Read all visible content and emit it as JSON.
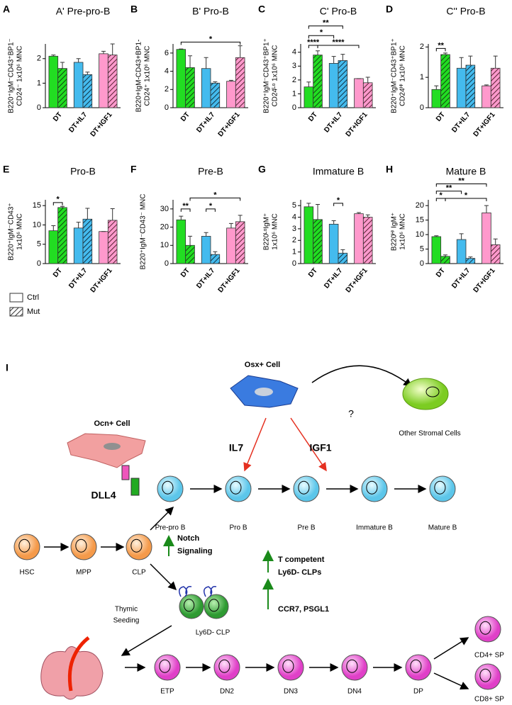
{
  "chart_data": [
    {
      "type": "bar",
      "panel": "A",
      "title": "A' Pre-pro-B",
      "ylabel": [
        "B220⁺IgM⁻CD43⁺BP1⁻",
        "CD24⁻ 1x10⁶ MNC"
      ],
      "categories": [
        "DT",
        "DT+IL7",
        "DT+IGF1"
      ],
      "colors": [
        "#22dd22",
        "#44bbee",
        "#ff99cc"
      ],
      "series": [
        {
          "values": [
            2.1,
            1.85,
            2.2
          ],
          "errors": [
            0.05,
            0.15,
            0.1
          ],
          "hatch": false
        },
        {
          "values": [
            1.6,
            1.35,
            2.15
          ],
          "errors": [
            0.25,
            0.1,
            0.45
          ],
          "hatch": true
        }
      ],
      "ylim": [
        0,
        2.6
      ],
      "yticks": [
        0,
        1,
        2
      ],
      "brackets": []
    },
    {
      "type": "bar",
      "panel": "B",
      "title": "B' Pro-B",
      "ylabel": [
        "B220+IgM-CD43+BP1-",
        "CD24⁺ 1x10⁶ MNC"
      ],
      "categories": [
        "DT",
        "DT+IL7",
        "DT+IGF1"
      ],
      "colors": [
        "#22dd22",
        "#44bbee",
        "#ff99cc"
      ],
      "series": [
        {
          "values": [
            6.4,
            4.3,
            2.9
          ],
          "errors": [
            0.05,
            1.2,
            0.1
          ],
          "hatch": false
        },
        {
          "values": [
            4.4,
            2.7,
            5.5
          ],
          "errors": [
            1.3,
            0.15,
            1.3
          ],
          "hatch": true
        }
      ],
      "ylim": [
        0,
        7
      ],
      "yticks": [
        0,
        2,
        4,
        6
      ],
      "brackets": [
        {
          "label": "*",
          "from": 0,
          "to": 5,
          "y": 7.2
        }
      ]
    },
    {
      "type": "bar",
      "panel": "C",
      "title": "C' Pro-B",
      "ylabel": [
        "B220⁺IgM⁻CD43⁺BP1⁺",
        "CD24ᴸᵒ 1x10⁶ MNC"
      ],
      "categories": [
        "DT",
        "DT+IL7",
        "DT+IGF1"
      ],
      "colors": [
        "#22dd22",
        "#44bbee",
        "#ff99cc"
      ],
      "series": [
        {
          "values": [
            1.5,
            3.2,
            2.1
          ],
          "errors": [
            0.35,
            0.5,
            0
          ],
          "hatch": false
        },
        {
          "values": [
            3.8,
            3.4,
            1.8
          ],
          "errors": [
            0.3,
            0.45,
            0.4
          ],
          "hatch": true
        }
      ],
      "ylim": [
        0,
        4.6
      ],
      "yticks": [
        0,
        1,
        2,
        3,
        4
      ],
      "brackets": [
        {
          "label": "****",
          "from": 0,
          "to": 1,
          "y": 4.5
        },
        {
          "label": "****",
          "from": 1,
          "to": 4,
          "y": 4.5
        },
        {
          "label": "*",
          "from": 0,
          "to": 2,
          "y": 5.2
        },
        {
          "label": "**",
          "from": 0,
          "to": 3,
          "y": 5.9
        }
      ]
    },
    {
      "type": "bar",
      "panel": "D",
      "title": "C'' Pro-B",
      "ylabel": [
        "B220⁺IgM⁻CD43⁺BP1⁺",
        "CD24ᴴⁱ 1x10⁶ MNC"
      ],
      "categories": [
        "DT",
        "DT+IL7",
        "DT+IGF1"
      ],
      "colors": [
        "#22dd22",
        "#44bbee",
        "#ff99cc"
      ],
      "series": [
        {
          "values": [
            0.6,
            1.3,
            0.72
          ],
          "errors": [
            0.12,
            0.35,
            0.03
          ],
          "hatch": false
        },
        {
          "values": [
            1.75,
            1.4,
            1.3
          ],
          "errors": [
            0.05,
            0.3,
            0.4
          ],
          "hatch": true
        }
      ],
      "ylim": [
        0,
        2.1
      ],
      "yticks": [
        0,
        1,
        2
      ],
      "brackets": [
        {
          "label": "**",
          "from": 0,
          "to": 1,
          "y": 1.95
        }
      ]
    },
    {
      "type": "bar",
      "panel": "E",
      "title": "Pro-B",
      "ylabel": [
        "B220⁺IgM⁻CD43⁺",
        "1x10⁶ MNC"
      ],
      "categories": [
        "DT",
        "DT+IL7",
        "DT+IGF1"
      ],
      "colors": [
        "#22dd22",
        "#44bbee",
        "#ff99cc"
      ],
      "series": [
        {
          "values": [
            8.5,
            9.2,
            8.3
          ],
          "errors": [
            1.3,
            1.5,
            0
          ],
          "hatch": false
        },
        {
          "values": [
            14.5,
            11.5,
            11.2
          ],
          "errors": [
            0.3,
            2.8,
            3
          ],
          "hatch": true
        }
      ],
      "ylim": [
        0,
        16.5
      ],
      "yticks": [
        0,
        5,
        10,
        15
      ],
      "brackets": [
        {
          "label": "*",
          "from": 0,
          "to": 1,
          "y": 15.8
        }
      ]
    },
    {
      "type": "bar",
      "panel": "F",
      "title": "Pre-B",
      "ylabel": [
        "B220⁺IgM⁻CD43⁻ MNC"
      ],
      "categories": [
        "DT",
        "DT+IL7",
        "DT+IGF1"
      ],
      "colors": [
        "#22dd22",
        "#44bbee",
        "#ff99cc"
      ],
      "series": [
        {
          "values": [
            24,
            15,
            19.5
          ],
          "errors": [
            2,
            2,
            2.5
          ],
          "hatch": false
        },
        {
          "values": [
            10,
            5,
            23
          ],
          "errors": [
            5,
            1.5,
            3.5
          ],
          "hatch": true
        }
      ],
      "ylim": [
        0,
        35
      ],
      "yticks": [
        0,
        10,
        20,
        30
      ],
      "brackets": [
        {
          "label": "**",
          "from": 0,
          "to": 1,
          "y": 30
        },
        {
          "label": "*",
          "from": 2,
          "to": 3,
          "y": 30
        },
        {
          "label": "*",
          "from": 1,
          "to": 5,
          "y": 36
        }
      ]
    },
    {
      "type": "bar",
      "panel": "G",
      "title": "Immature B",
      "ylabel": [
        "B220ᴸᵒIgM⁺",
        "1x10⁶ MNC"
      ],
      "categories": [
        "DT",
        "DT+IL7",
        "DT+IGF1"
      ],
      "colors": [
        "#22dd22",
        "#44bbee",
        "#ff99cc"
      ],
      "series": [
        {
          "values": [
            4.9,
            3.4,
            4.3
          ],
          "errors": [
            0.3,
            0.3,
            0.1
          ],
          "hatch": false
        },
        {
          "values": [
            3.8,
            0.9,
            4
          ],
          "errors": [
            1.3,
            0.3,
            0.2
          ],
          "hatch": true
        }
      ],
      "ylim": [
        0,
        5.5
      ],
      "yticks": [
        0,
        1,
        2,
        3,
        4,
        5
      ],
      "brackets": [
        {
          "label": "*",
          "from": 2,
          "to": 3,
          "y": 5.2
        }
      ]
    },
    {
      "type": "bar",
      "panel": "H",
      "title": "Mature B",
      "ylabel": [
        "B220ᴴⁱ IgM⁺",
        "1x10⁶ MNC"
      ],
      "categories": [
        "DT",
        "DT+IL7",
        "DT+IGF1"
      ],
      "colors": [
        "#22dd22",
        "#44bbee",
        "#ff99cc"
      ],
      "series": [
        {
          "values": [
            9.3,
            8.3,
            17.5
          ],
          "errors": [
            0.3,
            2,
            2.5
          ],
          "hatch": false
        },
        {
          "values": [
            2.5,
            1.8,
            6.5
          ],
          "errors": [
            0.5,
            0.5,
            2
          ],
          "hatch": true
        }
      ],
      "ylim": [
        0,
        22
      ],
      "yticks": [
        0,
        5,
        10,
        15,
        20
      ],
      "brackets": [
        {
          "label": "*",
          "from": 0,
          "to": 1,
          "y": 22.5
        },
        {
          "label": "*",
          "from": 1,
          "to": 4,
          "y": 22.5
        },
        {
          "label": "**",
          "from": 0,
          "to": 2,
          "y": 25
        },
        {
          "label": "**",
          "from": 0,
          "to": 4,
          "y": 27.5
        }
      ]
    }
  ],
  "legend": [
    "Ctrl",
    "Mut"
  ],
  "diagram": {
    "panel": "I",
    "osx": "Osx+ Cell",
    "ocn": "Ocn+ Cell",
    "other": "Other Stromal Cells",
    "question": "?",
    "factors": [
      "IL7",
      "IGF1"
    ],
    "dll4": "DLL4",
    "progenitors": [
      "HSC",
      "MPP",
      "CLP"
    ],
    "b_cells": [
      "Pre-pro B",
      "Pro B",
      "Pre B",
      "Immature B",
      "Mature B"
    ],
    "t_cells": [
      "ETP",
      "DN2",
      "DN3",
      "DN4",
      "DP"
    ],
    "sp": [
      "CD4+ SP",
      "CD8+ SP"
    ],
    "ly6d": "Ly6D- CLP",
    "notch": [
      "Notch",
      "Signaling"
    ],
    "t_competent": [
      "T competent",
      "Ly6D- CLPs"
    ],
    "ccr7": "CCR7, PSGL1",
    "thymic": [
      "Thymic",
      "Seeding"
    ]
  }
}
